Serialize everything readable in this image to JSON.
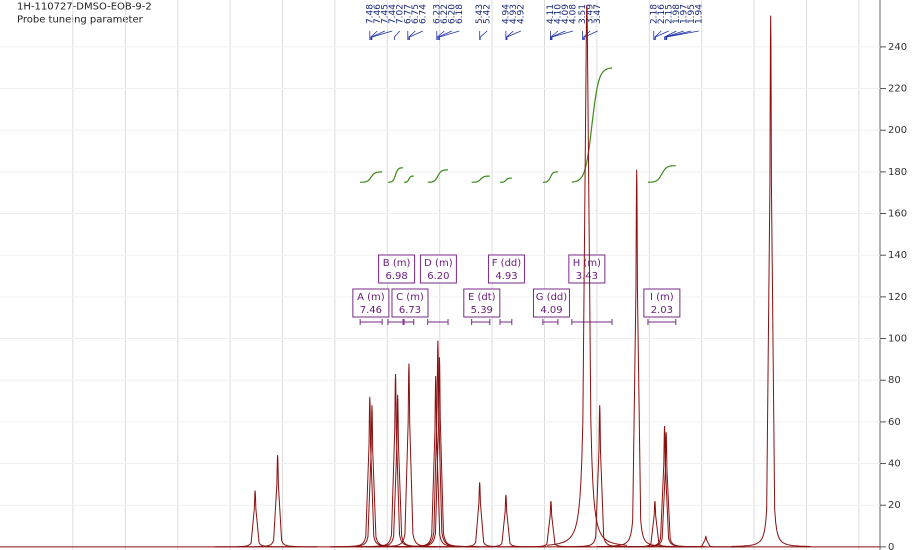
{
  "chart_data": {
    "type": "spectrum",
    "title": "1H-110727-DMSO-EOB-9-2",
    "subtitle": "Probe tuneing parameter",
    "xlim": [
      14.38,
      -2.04
    ],
    "ylim": [
      -1.5,
      262.5
    ],
    "yticks": [
      0,
      20,
      40,
      60,
      80,
      100,
      120,
      140,
      160,
      180,
      200,
      220,
      240
    ],
    "grid": true,
    "color": "#8b1010",
    "peaks": [
      {
        "ppm": 9.62,
        "height": 27
      },
      {
        "ppm": 9.2,
        "height": 44
      },
      {
        "ppm": 7.48,
        "height": 72
      },
      {
        "ppm": 7.44,
        "height": 68
      },
      {
        "ppm": 7.0,
        "height": 83
      },
      {
        "ppm": 6.96,
        "height": 73
      },
      {
        "ppm": 6.75,
        "height": 88
      },
      {
        "ppm": 6.25,
        "height": 82
      },
      {
        "ppm": 6.21,
        "height": 99
      },
      {
        "ppm": 6.18,
        "height": 91
      },
      {
        "ppm": 5.43,
        "height": 31
      },
      {
        "ppm": 4.94,
        "height": 25
      },
      {
        "ppm": 4.1,
        "height": 22
      },
      {
        "ppm": 3.43,
        "height": 260
      },
      {
        "ppm": 3.19,
        "height": 68
      },
      {
        "ppm": 2.5,
        "height": 181
      },
      {
        "ppm": 2.16,
        "height": 22
      },
      {
        "ppm": 1.98,
        "height": 58
      },
      {
        "ppm": 1.95,
        "height": 55
      },
      {
        "ppm": 1.21,
        "height": 5
      },
      {
        "ppm": 0,
        "height": 255
      }
    ],
    "peak_labels": [
      7.48,
      7.46,
      7.45,
      7.44,
      7.02,
      6.77,
      6.75,
      6.74,
      6.23,
      6.22,
      {
        "value": 6.2,
        "label": "6.20"
      },
      6.18,
      5.43,
      5.42,
      4.94,
      4.93,
      4.92,
      4.11,
      {
        "value": 4.1,
        "label": "4.10"
      },
      4.09,
      4.08,
      3.51,
      3.49,
      3.47,
      2.18,
      2.16,
      2.15,
      1.98,
      1.97,
      1.95,
      1.94
    ],
    "integrals": [
      {
        "from": 7.66,
        "to": 7.25,
        "y0": 175,
        "y1": 180
      },
      {
        "from": 7.14,
        "to": 6.86,
        "y0": 175,
        "y1": 182
      },
      {
        "from": 6.84,
        "to": 6.66,
        "y0": 175,
        "y1": 178
      },
      {
        "from": 6.4,
        "to": 6.02,
        "y0": 175,
        "y1": 181
      },
      {
        "from": 5.58,
        "to": 5.24,
        "y0": 175,
        "y1": 178
      },
      {
        "from": 5.05,
        "to": 4.83,
        "y0": 175,
        "y1": 177
      },
      {
        "from": 4.25,
        "to": 3.97,
        "y0": 175,
        "y1": 180
      },
      {
        "from": 3.71,
        "to": 2.96,
        "y0": 175,
        "y1": 230
      },
      {
        "from": 2.29,
        "to": 1.77,
        "y0": 175,
        "y1": 183
      }
    ],
    "multiplets": [
      {
        "label": "A (m)",
        "shift": 7.46
      },
      {
        "label": "B (m)",
        "shift": 6.98
      },
      {
        "label": "C (m)",
        "shift": 6.73
      },
      {
        "label": "D (m)",
        "shift": {
          "value": 6.2,
          "label": "6.20"
        }
      },
      {
        "label": "E (dt)",
        "shift": 5.39
      },
      {
        "label": "F (dd)",
        "shift": 4.93
      },
      {
        "label": "G (dd)",
        "shift": 4.09
      },
      {
        "label": "H (m)",
        "shift": 3.43
      },
      {
        "label": "I (m)",
        "shift": 2.03
      }
    ]
  }
}
